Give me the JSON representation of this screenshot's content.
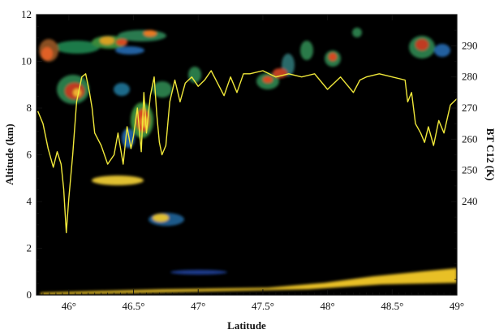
{
  "chart_data": {
    "type": "line",
    "xlabel": "Latitude",
    "ylabel": "Altitude (km)",
    "y2label": "BT C12 (K)",
    "xlim": [
      45.75,
      49.0
    ],
    "ylim": [
      0,
      12
    ],
    "y2lim": [
      210,
      300
    ],
    "x_ticks": [
      46,
      46.5,
      47,
      47.5,
      48,
      48.5,
      49
    ],
    "x_tick_labels": [
      "46°",
      "46.5°",
      "47°",
      "47.5°",
      "48°",
      "48.5°",
      "49°"
    ],
    "y_ticks": [
      0,
      2,
      4,
      6,
      8,
      10,
      12
    ],
    "y_tick_labels": [
      "0",
      "2",
      "4",
      "6",
      "8",
      "10",
      "12"
    ],
    "y2_ticks": [
      240,
      250,
      260,
      270,
      280,
      290
    ],
    "y2_tick_labels": [
      "240",
      "250",
      "260",
      "270",
      "280",
      "290"
    ],
    "background_color": "#000000",
    "line_color": "#f0e83a",
    "series": [
      {
        "axis": "right",
        "x": [
          45.76,
          45.8,
          45.84,
          45.88,
          45.91,
          45.94,
          45.96,
          45.98,
          46.0,
          46.03,
          46.06,
          46.1,
          46.13,
          46.16,
          46.18,
          46.2,
          46.25,
          46.3,
          46.35,
          46.38,
          46.42,
          46.45,
          46.48,
          46.5,
          46.53,
          46.56,
          46.58,
          46.6,
          46.63,
          46.66,
          46.68,
          46.7,
          46.72,
          46.75,
          46.78,
          46.82,
          46.86,
          46.9,
          46.95,
          47.0,
          47.05,
          47.1,
          47.15,
          47.2,
          47.25,
          47.3,
          47.35,
          47.4,
          47.5,
          47.6,
          47.7,
          47.8,
          47.9,
          48.0,
          48.1,
          48.2,
          48.25,
          48.3,
          48.4,
          48.5,
          48.6,
          48.62,
          48.65,
          48.68,
          48.72,
          48.75,
          48.78,
          48.82,
          48.86,
          48.9,
          48.95,
          49.0
        ],
        "values": [
          269,
          265,
          257,
          251,
          256,
          252,
          244,
          230,
          241,
          255,
          272,
          280,
          281,
          275,
          270,
          262,
          258,
          252,
          255,
          262,
          252,
          264,
          257,
          261,
          270,
          256,
          275,
          262,
          274,
          280,
          268,
          259,
          255,
          258,
          272,
          279,
          272,
          278,
          280,
          277,
          279,
          282,
          278,
          274,
          280,
          275,
          281,
          281,
          282,
          280,
          281,
          280,
          281,
          276,
          280,
          275,
          279,
          280,
          281,
          280,
          279,
          272,
          275,
          265,
          262,
          259,
          264,
          258,
          266,
          262,
          271,
          273
        ]
      }
    ]
  }
}
